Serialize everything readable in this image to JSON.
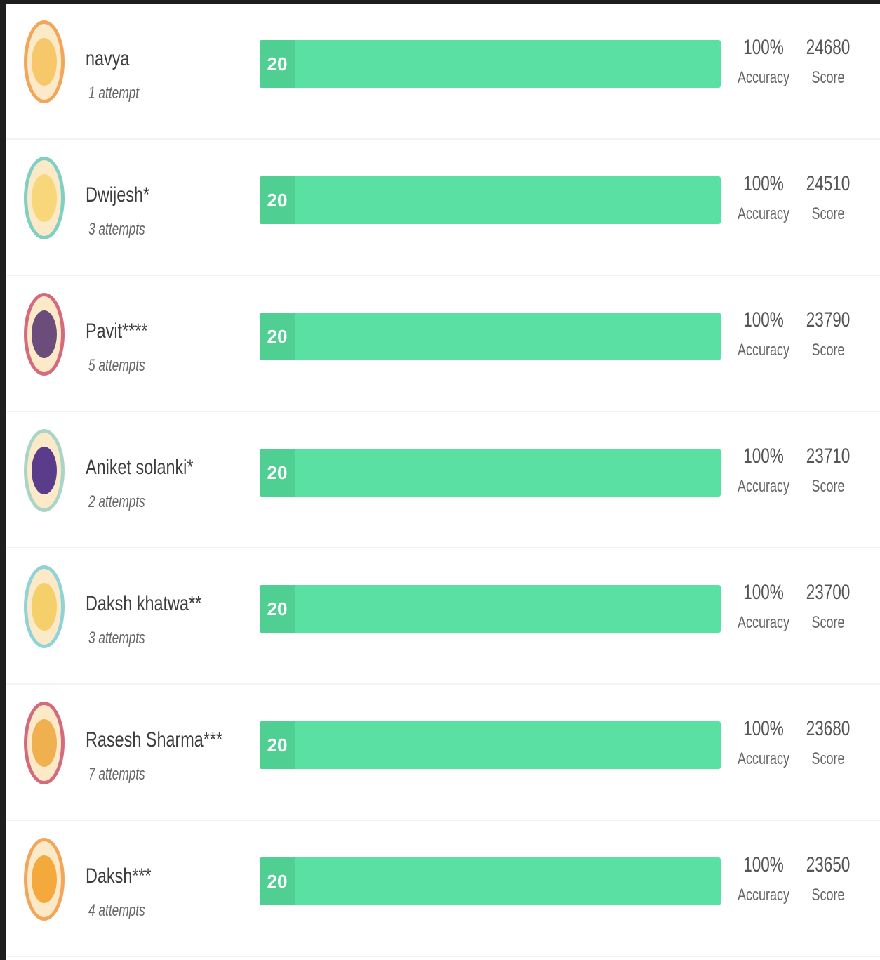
{
  "leaderboard": {
    "rows": [
      {
        "name": "navya",
        "attempts": "1 attempt",
        "correct": 20,
        "accuracy": "100%",
        "accuracy_label": "Accuracy",
        "score": 24680,
        "score_label": "Score"
      },
      {
        "name": "Dwijesh*",
        "attempts": "3 attempts",
        "correct": 20,
        "accuracy": "100%",
        "accuracy_label": "Accuracy",
        "score": 24510,
        "score_label": "Score"
      },
      {
        "name": "Pavit****",
        "attempts": "5 attempts",
        "correct": 20,
        "accuracy": "100%",
        "accuracy_label": "Accuracy",
        "score": 23790,
        "score_label": "Score"
      },
      {
        "name": "Aniket solanki*",
        "attempts": "2 attempts",
        "correct": 20,
        "accuracy": "100%",
        "accuracy_label": "Accuracy",
        "score": 23710,
        "score_label": "Score"
      },
      {
        "name": "Daksh khatwa**",
        "attempts": "3 attempts",
        "correct": 20,
        "accuracy": "100%",
        "accuracy_label": "Accuracy",
        "score": 23700,
        "score_label": "Score"
      },
      {
        "name": "Rasesh Sharma***",
        "attempts": "7 attempts",
        "correct": 20,
        "accuracy": "100%",
        "accuracy_label": "Accuracy",
        "score": 23680,
        "score_label": "Score"
      },
      {
        "name": "Daksh***",
        "attempts": "4 attempts",
        "correct": 20,
        "accuracy": "100%",
        "accuracy_label": "Accuracy",
        "score": 23650,
        "score_label": "Score"
      }
    ]
  }
}
